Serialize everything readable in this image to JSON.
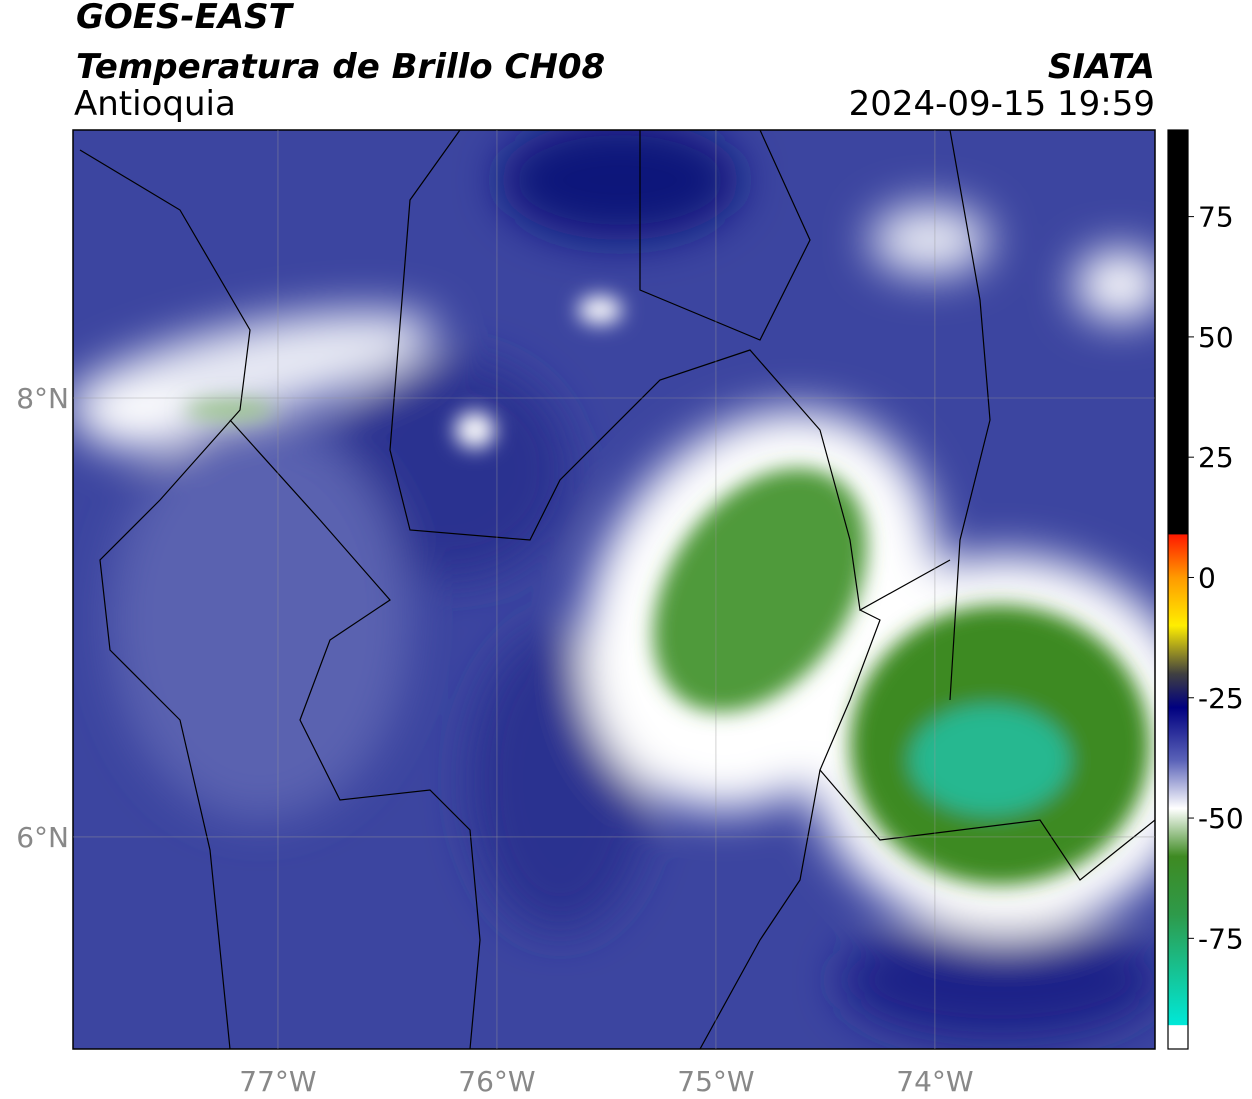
{
  "header": {
    "satellite": "GOES-EAST",
    "product": "Temperatura de Brillo CH08",
    "region": "Antioquia",
    "agency": "SIATA",
    "datetime": "2024-09-15 19:59"
  },
  "map": {
    "lonlim": [
      -77.936,
      -72.995
    ],
    "latlim": [
      5.034,
      9.221
    ],
    "lonticks": [
      {
        "value": -77,
        "label": "77°W"
      },
      {
        "value": -76,
        "label": "76°W"
      },
      {
        "value": -75,
        "label": "75°W"
      },
      {
        "value": -74,
        "label": "74°W"
      }
    ],
    "latticks": [
      {
        "value": 8,
        "label": "8°N"
      },
      {
        "value": 6,
        "label": "6°N"
      }
    ],
    "grid": true
  },
  "colorbar": {
    "clim": [
      -98,
      93
    ],
    "ticks": [
      75,
      50,
      25,
      0,
      -25,
      -50,
      -75
    ],
    "stops": [
      {
        "value": 93,
        "color": "#000000"
      },
      {
        "value": 9,
        "color": "#000000"
      },
      {
        "value": 8.9,
        "color": "#ff1a00"
      },
      {
        "value": 0,
        "color": "#ff9a00"
      },
      {
        "value": -10,
        "color": "#ffee00"
      },
      {
        "value": -20,
        "color": "#404040"
      },
      {
        "value": -27,
        "color": "#000080"
      },
      {
        "value": -38,
        "color": "#5a62b8"
      },
      {
        "value": -48,
        "color": "#ffffff"
      },
      {
        "value": -58,
        "color": "#3e8a22"
      },
      {
        "value": -70,
        "color": "#2e9a4a"
      },
      {
        "value": -93,
        "color": "#00e8d8"
      },
      {
        "value": -93.1,
        "color": "#ffffff"
      },
      {
        "value": -98,
        "color": "#ffffff"
      }
    ]
  }
}
